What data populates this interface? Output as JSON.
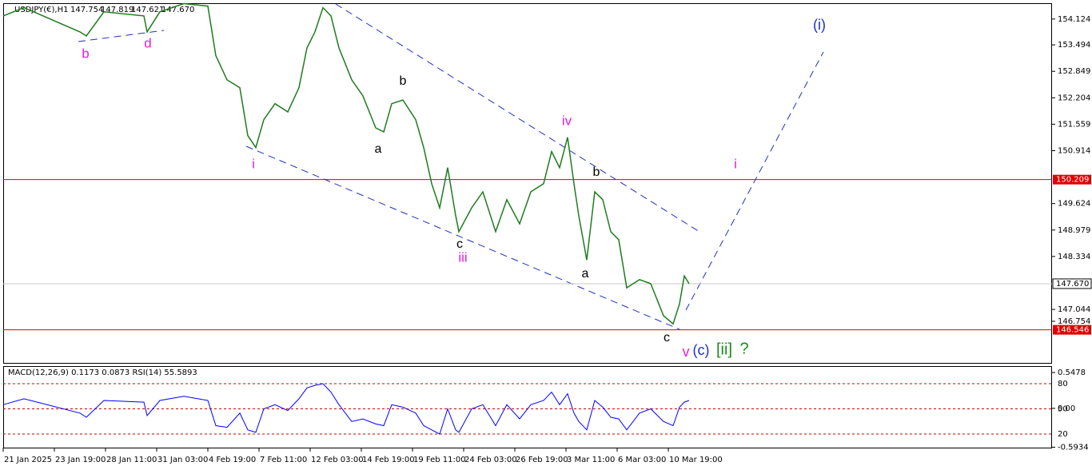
{
  "chart_data": {
    "type": "line",
    "title": "USDJPY(€),H1",
    "ohlc": [
      "147.754",
      "147.819",
      "147.621",
      "147.670"
    ],
    "x": [
      0,
      13,
      48,
      52,
      63,
      88,
      90,
      98,
      113,
      128,
      133,
      140,
      148,
      153,
      158,
      163,
      170,
      178,
      185,
      190,
      195,
      200,
      205,
      210,
      218,
      225,
      233,
      238,
      243,
      250,
      258,
      263,
      268,
      273,
      278,
      283,
      285,
      293,
      300,
      308,
      315,
      323,
      330,
      338,
      343,
      348,
      353,
      357,
      360,
      365,
      370,
      375,
      380,
      385,
      390,
      398,
      405,
      413,
      419,
      423,
      426,
      429
    ],
    "values": [
      154.2,
      154.4,
      153.81,
      153.71,
      154.3,
      154.2,
      153.81,
      154.3,
      154.5,
      154.44,
      153.23,
      152.64,
      152.45,
      151.28,
      150.99,
      151.67,
      152.06,
      151.86,
      152.45,
      153.42,
      153.81,
      154.4,
      154.2,
      153.42,
      152.64,
      152.25,
      151.47,
      151.37,
      152.06,
      152.15,
      151.67,
      150.99,
      150.11,
      149.52,
      150.5,
      149.33,
      148.94,
      149.52,
      149.91,
      148.94,
      149.72,
      149.13,
      149.91,
      150.11,
      150.89,
      150.5,
      151.24,
      150.11,
      149.33,
      148.25,
      149.91,
      149.72,
      148.94,
      148.74,
      147.57,
      147.77,
      147.67,
      146.89,
      146.69,
      147.18,
      147.86,
      147.67
    ],
    "color": "#1e7b1e",
    "xlim": [
      0,
      656
    ],
    "xticks": [
      {
        "value": 0,
        "label": "21 Jan 2025"
      },
      {
        "value": 32,
        "label": "23 Jan 19:00"
      },
      {
        "value": 64,
        "label": "28 Jan 11:00"
      },
      {
        "value": 96,
        "label": "31 Jan 03:00"
      },
      {
        "value": 128,
        "label": "4 Feb 19:00"
      },
      {
        "value": 160,
        "label": "7 Feb 11:00"
      },
      {
        "value": 192,
        "label": "12 Feb 03:00"
      },
      {
        "value": 224,
        "label": "14 Feb 19:00"
      },
      {
        "value": 256,
        "label": "19 Feb 11:00"
      },
      {
        "value": 288,
        "label": "24 Feb 03:00"
      },
      {
        "value": 320,
        "label": "26 Feb 19:00"
      },
      {
        "value": 352,
        "label": "3 Mar 11:00"
      },
      {
        "value": 384,
        "label": "6 Mar 03:00"
      },
      {
        "value": 416,
        "label": "10 Mar 19:00"
      }
    ],
    "ylim": [
      145.72,
      154.51
    ],
    "yticks": [
      154.124,
      153.494,
      152.849,
      152.204,
      151.559,
      150.914,
      149.624,
      148.979,
      148.334,
      147.044,
      146.754
    ],
    "levels": [
      {
        "value": 150.209,
        "label": "150.209",
        "color": "#e00000"
      },
      {
        "value": 146.546,
        "label": "146.546",
        "color": "#e00000"
      },
      {
        "value": 147.67,
        "label": "147.670",
        "color": "#c8c8c8"
      }
    ],
    "annotations": [
      {
        "text": "b",
        "color": "#e020e0"
      },
      {
        "text": "d",
        "color": "#e020e0"
      },
      {
        "text": "i",
        "color": "#e020e0"
      },
      {
        "text": "a",
        "color": "#000000"
      },
      {
        "text": "b",
        "color": "#000000"
      },
      {
        "text": "c",
        "color": "#000000"
      },
      {
        "text": "iii",
        "color": "#e020e0"
      },
      {
        "text": "iv",
        "color": "#e020e0"
      },
      {
        "text": "a",
        "color": "#000000"
      },
      {
        "text": "b",
        "color": "#000000"
      },
      {
        "text": "c",
        "color": "#000000"
      },
      {
        "text": "v",
        "color": "#e020e0"
      },
      {
        "text": "(c)",
        "color": "#2030c0"
      },
      {
        "text": "[ii]",
        "color": "#1a8a1a"
      },
      {
        "text": "?",
        "color": "#1a8a1a"
      },
      {
        "text": "i",
        "color": "#e020e0"
      },
      {
        "text": "(i)",
        "color": "#2030c0"
      }
    ],
    "indicator": {
      "title": "MACD(12,26,9) 0.1173 0.0873 RSI(14) 55.5893",
      "rsi_values": [
        55,
        62,
        45,
        40,
        60,
        58,
        42,
        60,
        65,
        60,
        30,
        28,
        45,
        25,
        22,
        50,
        55,
        48,
        62,
        75,
        78,
        80,
        70,
        55,
        35,
        38,
        32,
        30,
        55,
        52,
        45,
        30,
        25,
        20,
        50,
        25,
        22,
        50,
        55,
        30,
        55,
        38,
        55,
        60,
        70,
        55,
        68,
        45,
        35,
        25,
        60,
        52,
        40,
        38,
        25,
        45,
        50,
        35,
        30,
        52,
        58,
        60
      ],
      "rsi_color": "#0000ff",
      "rsi_ylim": [
        3.8,
        101
      ],
      "rsi_yticks": [
        80,
        50,
        20
      ],
      "macd_ylim": [
        -0.6,
        0.646
      ],
      "macd_yticks": [
        {
          "value": 0.5478,
          "label": "0.5478"
        },
        {
          "value": 0,
          "label": "0.00"
        },
        {
          "value": -0.5934,
          "label": "-0.5934"
        }
      ]
    }
  }
}
